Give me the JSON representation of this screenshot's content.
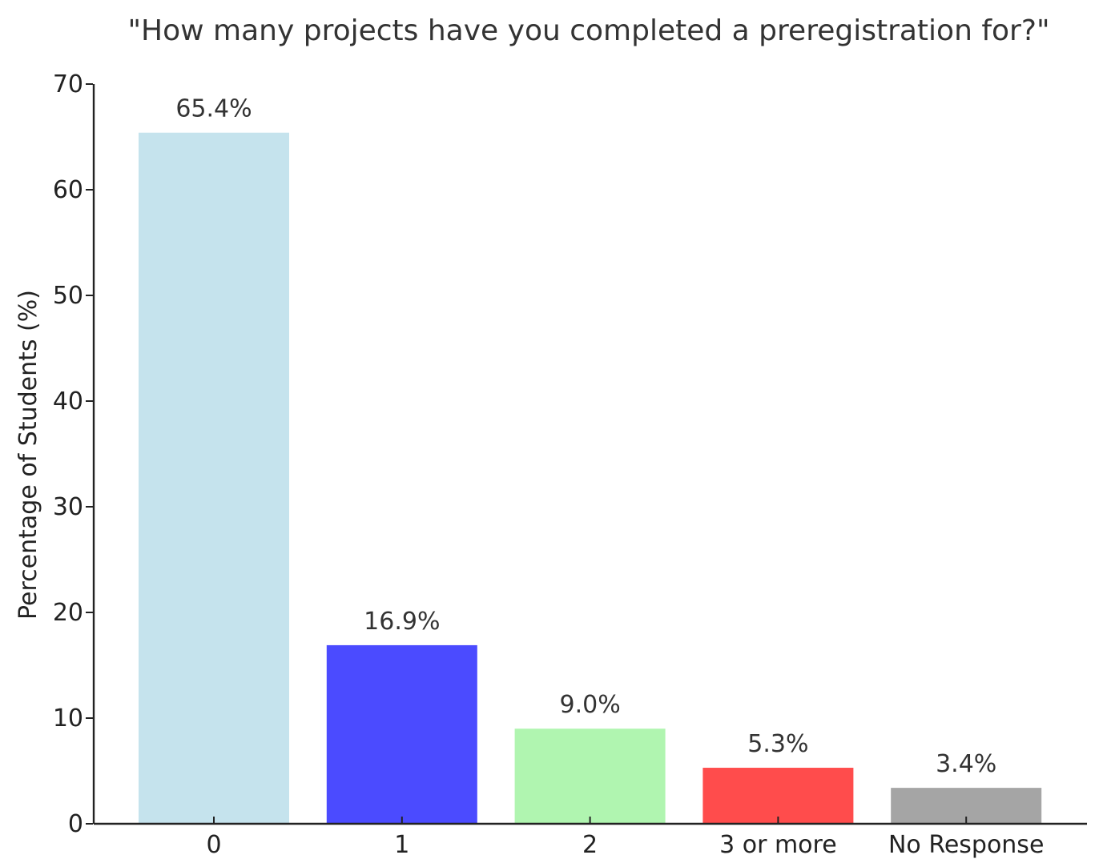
{
  "chart_data": {
    "type": "bar",
    "title": "\"How many projects have you completed a preregistration for?\"",
    "xlabel": "",
    "ylabel": "Percentage of Students (%)",
    "categories": [
      "0",
      "1",
      "2",
      "3 or more",
      "No Response"
    ],
    "values": [
      65.4,
      16.9,
      9.0,
      5.3,
      3.4
    ],
    "data_labels": [
      "65.4%",
      "16.9%",
      "9.0%",
      "5.3%",
      "3.4%"
    ],
    "colors": [
      "#c5e3ed",
      "#4b4bff",
      "#b0f5b0",
      "#ff4c4c",
      "#a5a5a5"
    ],
    "ylim": [
      0,
      70
    ],
    "yticks": [
      0,
      10,
      20,
      30,
      40,
      50,
      60,
      70
    ],
    "grid": false,
    "legend": "none"
  }
}
